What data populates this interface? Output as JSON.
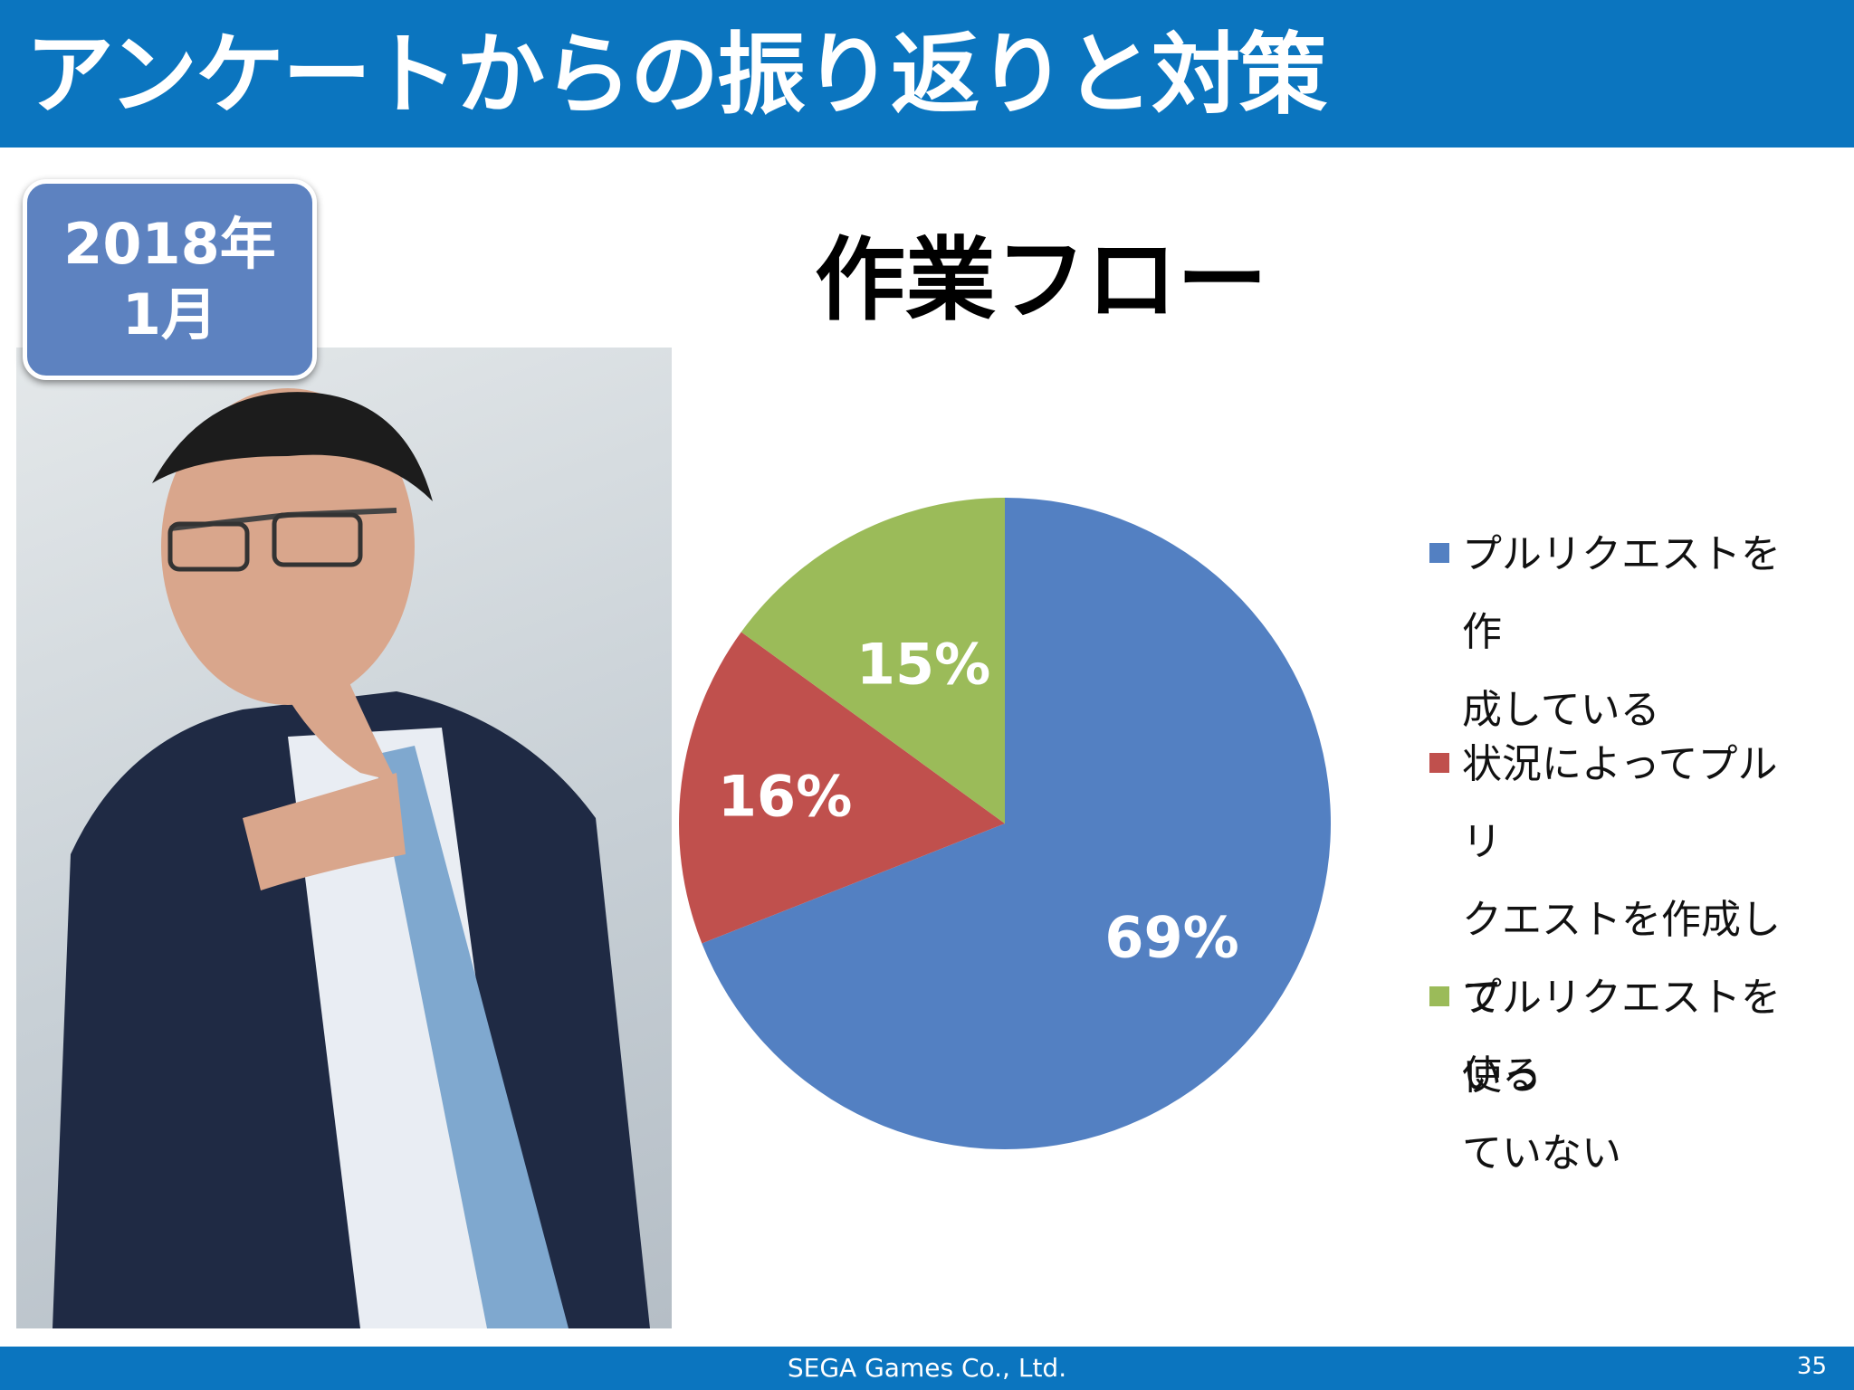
{
  "header": {
    "title": "アンケートからの振り返りと対策"
  },
  "badge": {
    "line1": "2018年",
    "line2": "1月"
  },
  "photo": {
    "icon": "photo-of-man-in-suit-thinking"
  },
  "colors": {
    "header_bar": "#0b75bf",
    "badge": "#5d82c0",
    "blue": "#5380c2",
    "red": "#c0504d",
    "green": "#9bbb59"
  },
  "chart_data": {
    "type": "pie",
    "title": "作業フロー",
    "categories": [
      "プルリクエストを作成している",
      "状況によってプルリクエストを作成している",
      "プルリクエストを使っていない"
    ],
    "values": [
      69,
      16,
      15
    ],
    "data_labels": [
      "69%",
      "16%",
      "15%"
    ],
    "colors": [
      "#5380c2",
      "#c0504d",
      "#9bbb59"
    ],
    "start": "12 o'clock, clockwise",
    "legend_position": "right",
    "legend_lines": [
      [
        "プルリクエストを作",
        "成している"
      ],
      [
        "状況によってプルリ",
        "クエストを作成して",
        "いる"
      ],
      [
        "プルリクエストを使っ",
        "ていない"
      ]
    ]
  },
  "footer": {
    "company": "SEGA Games Co., Ltd.",
    "page_number": "35"
  }
}
